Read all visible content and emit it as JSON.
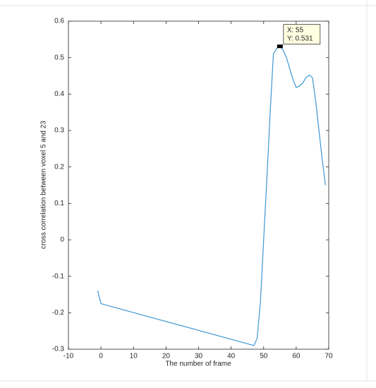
{
  "chart_data": {
    "type": "line",
    "xlabel": "The number of frame",
    "ylabel": "cross correlation between voxel 5 and 23",
    "x": [
      -1,
      0,
      47,
      48,
      49,
      50,
      51,
      52,
      53,
      54,
      55,
      56,
      57,
      58,
      59,
      60,
      61,
      62,
      63,
      64,
      65,
      66,
      67,
      68,
      69
    ],
    "values": [
      -0.14,
      -0.175,
      -0.29,
      -0.27,
      -0.17,
      0.0,
      0.17,
      0.35,
      0.51,
      0.525,
      0.531,
      0.52,
      0.5,
      0.47,
      0.44,
      0.418,
      0.422,
      0.43,
      0.445,
      0.452,
      0.445,
      0.38,
      0.3,
      0.22,
      0.15
    ],
    "color": "#3d97d3",
    "xlim": [
      -10,
      70
    ],
    "xticks": [
      -10,
      0,
      10,
      20,
      30,
      40,
      50,
      60,
      70
    ],
    "ylim": [
      -0.3,
      0.6
    ],
    "yticks": [
      -0.3,
      -0.2,
      -0.1,
      0,
      0.1,
      0.2,
      0.3,
      0.4,
      0.5,
      0.6
    ],
    "grid": false,
    "annotation": {
      "x": 55,
      "y": 0.531,
      "lines": [
        "X: 55",
        "Y: 0.531"
      ]
    }
  }
}
